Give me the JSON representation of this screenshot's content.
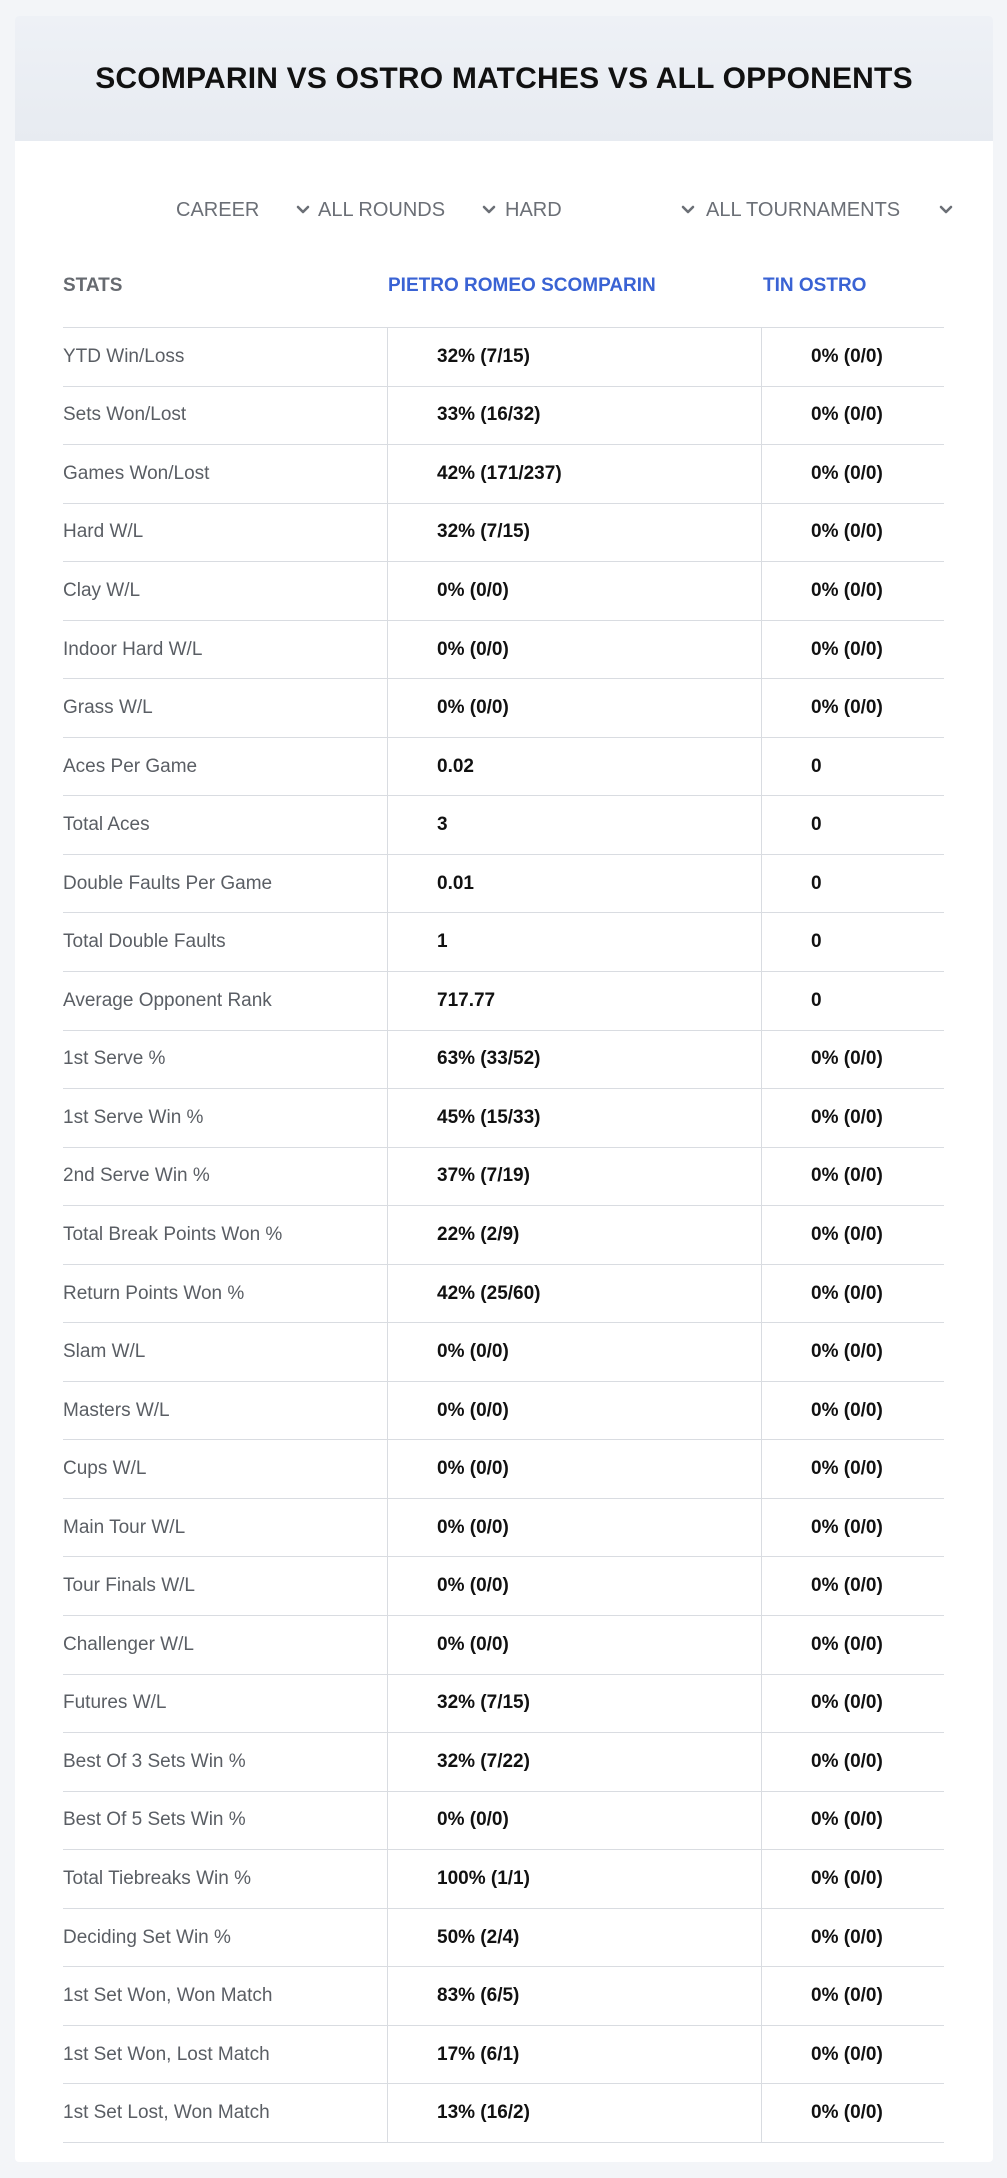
{
  "title": "SCOMPARIN VS OSTRO MATCHES VS ALL OPPONENTS",
  "filters": [
    {
      "value": "CAREER",
      "icon": "chevron-down-icon"
    },
    {
      "value": "ALL ROUNDS",
      "icon": "chevron-down-icon"
    },
    {
      "value": "HARD",
      "icon": "chevron-down-icon"
    },
    {
      "value": "ALL TOURNAMENTS",
      "icon": "chevron-down-icon"
    }
  ],
  "headers": {
    "stats": "STATS",
    "player1": "PIETRO ROMEO SCOMPARIN",
    "player2": "TIN OSTRO"
  },
  "colors": {
    "accent": "#3a63d4",
    "header_bg": "#e9edf3",
    "divider": "#d9dce1"
  },
  "rows": [
    {
      "label": "YTD Win/Loss",
      "p1": "32% (7/15)",
      "p2": "0% (0/0)"
    },
    {
      "label": "Sets Won/Lost",
      "p1": "33% (16/32)",
      "p2": "0% (0/0)"
    },
    {
      "label": "Games Won/Lost",
      "p1": "42% (171/237)",
      "p2": "0% (0/0)"
    },
    {
      "label": "Hard W/L",
      "p1": "32% (7/15)",
      "p2": "0% (0/0)"
    },
    {
      "label": "Clay W/L",
      "p1": "0% (0/0)",
      "p2": "0% (0/0)"
    },
    {
      "label": "Indoor Hard W/L",
      "p1": "0% (0/0)",
      "p2": "0% (0/0)"
    },
    {
      "label": "Grass W/L",
      "p1": "0% (0/0)",
      "p2": "0% (0/0)"
    },
    {
      "label": "Aces Per Game",
      "p1": "0.02",
      "p2": "0"
    },
    {
      "label": "Total Aces",
      "p1": "3",
      "p2": "0"
    },
    {
      "label": "Double Faults Per Game",
      "p1": "0.01",
      "p2": "0"
    },
    {
      "label": "Total Double Faults",
      "p1": "1",
      "p2": "0"
    },
    {
      "label": "Average Opponent Rank",
      "p1": "717.77",
      "p2": "0"
    },
    {
      "label": "1st Serve %",
      "p1": "63% (33/52)",
      "p2": "0% (0/0)"
    },
    {
      "label": "1st Serve Win %",
      "p1": "45% (15/33)",
      "p2": "0% (0/0)"
    },
    {
      "label": "2nd Serve Win %",
      "p1": "37% (7/19)",
      "p2": "0% (0/0)"
    },
    {
      "label": "Total Break Points Won %",
      "p1": "22% (2/9)",
      "p2": "0% (0/0)"
    },
    {
      "label": "Return Points Won %",
      "p1": "42% (25/60)",
      "p2": "0% (0/0)"
    },
    {
      "label": "Slam W/L",
      "p1": "0% (0/0)",
      "p2": "0% (0/0)"
    },
    {
      "label": "Masters W/L",
      "p1": "0% (0/0)",
      "p2": "0% (0/0)"
    },
    {
      "label": "Cups W/L",
      "p1": "0% (0/0)",
      "p2": "0% (0/0)"
    },
    {
      "label": "Main Tour W/L",
      "p1": "0% (0/0)",
      "p2": "0% (0/0)"
    },
    {
      "label": "Tour Finals W/L",
      "p1": "0% (0/0)",
      "p2": "0% (0/0)"
    },
    {
      "label": "Challenger W/L",
      "p1": "0% (0/0)",
      "p2": "0% (0/0)"
    },
    {
      "label": "Futures W/L",
      "p1": "32% (7/15)",
      "p2": "0% (0/0)"
    },
    {
      "label": "Best Of 3 Sets Win %",
      "p1": "32% (7/22)",
      "p2": "0% (0/0)"
    },
    {
      "label": "Best Of 5 Sets Win %",
      "p1": "0% (0/0)",
      "p2": "0% (0/0)"
    },
    {
      "label": "Total Tiebreaks Win %",
      "p1": "100% (1/1)",
      "p2": "0% (0/0)"
    },
    {
      "label": "Deciding Set Win %",
      "p1": "50% (2/4)",
      "p2": "0% (0/0)"
    },
    {
      "label": "1st Set Won, Won Match",
      "p1": "83% (6/5)",
      "p2": "0% (0/0)"
    },
    {
      "label": "1st Set Won, Lost Match",
      "p1": "17% (6/1)",
      "p2": "0% (0/0)"
    },
    {
      "label": "1st Set Lost, Won Match",
      "p1": "13% (16/2)",
      "p2": "0% (0/0)"
    }
  ]
}
